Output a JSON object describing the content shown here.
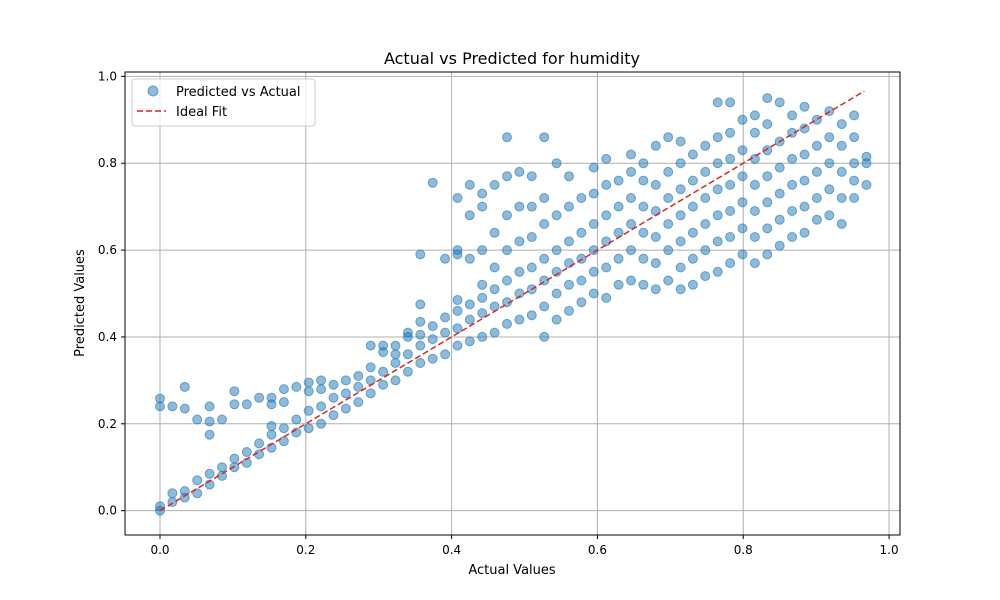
{
  "chart_data": {
    "type": "scatter",
    "title": "Actual vs Predicted for humidity",
    "xlabel": "Actual Values",
    "ylabel": "Predicted Values",
    "xlim": [
      -0.048,
      1.015
    ],
    "ylim": [
      -0.056,
      1.01
    ],
    "xticks": [
      "0.0",
      "0.2",
      "0.4",
      "0.6",
      "0.8",
      "1.0"
    ],
    "yticks": [
      "0.0",
      "0.2",
      "0.4",
      "0.6",
      "0.8",
      "1.0"
    ],
    "grid": true,
    "legend_position": "top-left",
    "legend": {
      "scatter_label": "Predicted vs Actual",
      "line_label": "Ideal Fit"
    },
    "colors": {
      "points": "#1f77b4",
      "ideal": "#d62728",
      "grid": "#b0b0b0"
    },
    "ideal_fit": {
      "x": [
        0.0,
        0.966
      ],
      "y": [
        0.0,
        0.966
      ]
    },
    "series": [
      {
        "name": "Predicted vs Actual",
        "points": [
          [
            0.0,
            0.0
          ],
          [
            0.0,
            0.01
          ],
          [
            0.0,
            0.24
          ],
          [
            0.0,
            0.258
          ],
          [
            0.017,
            0.02
          ],
          [
            0.017,
            0.04
          ],
          [
            0.017,
            0.24
          ],
          [
            0.034,
            0.03
          ],
          [
            0.034,
            0.045
          ],
          [
            0.034,
            0.235
          ],
          [
            0.034,
            0.285
          ],
          [
            0.051,
            0.04
          ],
          [
            0.051,
            0.07
          ],
          [
            0.051,
            0.21
          ],
          [
            0.068,
            0.06
          ],
          [
            0.068,
            0.085
          ],
          [
            0.068,
            0.175
          ],
          [
            0.068,
            0.205
          ],
          [
            0.068,
            0.24
          ],
          [
            0.085,
            0.08
          ],
          [
            0.085,
            0.1
          ],
          [
            0.085,
            0.21
          ],
          [
            0.102,
            0.1
          ],
          [
            0.102,
            0.12
          ],
          [
            0.102,
            0.245
          ],
          [
            0.102,
            0.275
          ],
          [
            0.119,
            0.11
          ],
          [
            0.119,
            0.135
          ],
          [
            0.119,
            0.245
          ],
          [
            0.136,
            0.13
          ],
          [
            0.136,
            0.155
          ],
          [
            0.136,
            0.26
          ],
          [
            0.153,
            0.145
          ],
          [
            0.153,
            0.175
          ],
          [
            0.153,
            0.195
          ],
          [
            0.153,
            0.245
          ],
          [
            0.153,
            0.26
          ],
          [
            0.17,
            0.16
          ],
          [
            0.17,
            0.19
          ],
          [
            0.17,
            0.25
          ],
          [
            0.17,
            0.28
          ],
          [
            0.187,
            0.18
          ],
          [
            0.187,
            0.21
          ],
          [
            0.187,
            0.285
          ],
          [
            0.204,
            0.19
          ],
          [
            0.204,
            0.23
          ],
          [
            0.204,
            0.275
          ],
          [
            0.204,
            0.295
          ],
          [
            0.221,
            0.2
          ],
          [
            0.221,
            0.24
          ],
          [
            0.221,
            0.28
          ],
          [
            0.221,
            0.3
          ],
          [
            0.238,
            0.22
          ],
          [
            0.238,
            0.26
          ],
          [
            0.238,
            0.29
          ],
          [
            0.255,
            0.235
          ],
          [
            0.255,
            0.27
          ],
          [
            0.255,
            0.3
          ],
          [
            0.272,
            0.25
          ],
          [
            0.272,
            0.285
          ],
          [
            0.272,
            0.31
          ],
          [
            0.289,
            0.27
          ],
          [
            0.289,
            0.3
          ],
          [
            0.289,
            0.33
          ],
          [
            0.289,
            0.38
          ],
          [
            0.306,
            0.29
          ],
          [
            0.306,
            0.32
          ],
          [
            0.306,
            0.365
          ],
          [
            0.306,
            0.38
          ],
          [
            0.323,
            0.3
          ],
          [
            0.323,
            0.34
          ],
          [
            0.323,
            0.36
          ],
          [
            0.323,
            0.38
          ],
          [
            0.34,
            0.32
          ],
          [
            0.34,
            0.36
          ],
          [
            0.34,
            0.4
          ],
          [
            0.34,
            0.41
          ],
          [
            0.357,
            0.34
          ],
          [
            0.357,
            0.38
          ],
          [
            0.357,
            0.405
          ],
          [
            0.357,
            0.435
          ],
          [
            0.357,
            0.475
          ],
          [
            0.357,
            0.59
          ],
          [
            0.374,
            0.35
          ],
          [
            0.374,
            0.395
          ],
          [
            0.374,
            0.425
          ],
          [
            0.374,
            0.755
          ],
          [
            0.391,
            0.36
          ],
          [
            0.391,
            0.41
          ],
          [
            0.391,
            0.445
          ],
          [
            0.391,
            0.58
          ],
          [
            0.408,
            0.38
          ],
          [
            0.408,
            0.42
          ],
          [
            0.408,
            0.46
          ],
          [
            0.408,
            0.485
          ],
          [
            0.408,
            0.59
          ],
          [
            0.408,
            0.6
          ],
          [
            0.408,
            0.72
          ],
          [
            0.425,
            0.39
          ],
          [
            0.425,
            0.44
          ],
          [
            0.425,
            0.475
          ],
          [
            0.425,
            0.58
          ],
          [
            0.425,
            0.68
          ],
          [
            0.425,
            0.75
          ],
          [
            0.442,
            0.4
          ],
          [
            0.442,
            0.455
          ],
          [
            0.442,
            0.49
          ],
          [
            0.442,
            0.52
          ],
          [
            0.442,
            0.6
          ],
          [
            0.442,
            0.7
          ],
          [
            0.442,
            0.73
          ],
          [
            0.459,
            0.41
          ],
          [
            0.459,
            0.47
          ],
          [
            0.459,
            0.51
          ],
          [
            0.459,
            0.56
          ],
          [
            0.459,
            0.64
          ],
          [
            0.459,
            0.75
          ],
          [
            0.476,
            0.43
          ],
          [
            0.476,
            0.48
          ],
          [
            0.476,
            0.53
          ],
          [
            0.476,
            0.6
          ],
          [
            0.476,
            0.68
          ],
          [
            0.476,
            0.77
          ],
          [
            0.476,
            0.86
          ],
          [
            0.493,
            0.44
          ],
          [
            0.493,
            0.5
          ],
          [
            0.493,
            0.55
          ],
          [
            0.493,
            0.62
          ],
          [
            0.493,
            0.7
          ],
          [
            0.493,
            0.78
          ],
          [
            0.51,
            0.45
          ],
          [
            0.51,
            0.51
          ],
          [
            0.51,
            0.56
          ],
          [
            0.51,
            0.63
          ],
          [
            0.51,
            0.7
          ],
          [
            0.51,
            0.77
          ],
          [
            0.527,
            0.4
          ],
          [
            0.527,
            0.47
          ],
          [
            0.527,
            0.53
          ],
          [
            0.527,
            0.58
          ],
          [
            0.527,
            0.66
          ],
          [
            0.527,
            0.72
          ],
          [
            0.527,
            0.86
          ],
          [
            0.544,
            0.44
          ],
          [
            0.544,
            0.5
          ],
          [
            0.544,
            0.55
          ],
          [
            0.544,
            0.6
          ],
          [
            0.544,
            0.68
          ],
          [
            0.544,
            0.8
          ],
          [
            0.561,
            0.46
          ],
          [
            0.561,
            0.52
          ],
          [
            0.561,
            0.57
          ],
          [
            0.561,
            0.62
          ],
          [
            0.561,
            0.7
          ],
          [
            0.561,
            0.77
          ],
          [
            0.578,
            0.48
          ],
          [
            0.578,
            0.53
          ],
          [
            0.578,
            0.58
          ],
          [
            0.578,
            0.64
          ],
          [
            0.578,
            0.72
          ],
          [
            0.595,
            0.5
          ],
          [
            0.595,
            0.55
          ],
          [
            0.595,
            0.6
          ],
          [
            0.595,
            0.66
          ],
          [
            0.595,
            0.73
          ],
          [
            0.595,
            0.79
          ],
          [
            0.612,
            0.49
          ],
          [
            0.612,
            0.56
          ],
          [
            0.612,
            0.62
          ],
          [
            0.612,
            0.68
          ],
          [
            0.612,
            0.75
          ],
          [
            0.612,
            0.81
          ],
          [
            0.629,
            0.52
          ],
          [
            0.629,
            0.58
          ],
          [
            0.629,
            0.64
          ],
          [
            0.629,
            0.7
          ],
          [
            0.629,
            0.76
          ],
          [
            0.646,
            0.53
          ],
          [
            0.646,
            0.6
          ],
          [
            0.646,
            0.66
          ],
          [
            0.646,
            0.72
          ],
          [
            0.646,
            0.78
          ],
          [
            0.646,
            0.82
          ],
          [
            0.663,
            0.52
          ],
          [
            0.663,
            0.58
          ],
          [
            0.663,
            0.64
          ],
          [
            0.663,
            0.7
          ],
          [
            0.663,
            0.76
          ],
          [
            0.663,
            0.8
          ],
          [
            0.68,
            0.51
          ],
          [
            0.68,
            0.57
          ],
          [
            0.68,
            0.63
          ],
          [
            0.68,
            0.69
          ],
          [
            0.68,
            0.75
          ],
          [
            0.68,
            0.84
          ],
          [
            0.697,
            0.53
          ],
          [
            0.697,
            0.6
          ],
          [
            0.697,
            0.66
          ],
          [
            0.697,
            0.72
          ],
          [
            0.697,
            0.78
          ],
          [
            0.697,
            0.86
          ],
          [
            0.714,
            0.51
          ],
          [
            0.714,
            0.56
          ],
          [
            0.714,
            0.62
          ],
          [
            0.714,
            0.68
          ],
          [
            0.714,
            0.74
          ],
          [
            0.714,
            0.8
          ],
          [
            0.714,
            0.85
          ],
          [
            0.731,
            0.52
          ],
          [
            0.731,
            0.58
          ],
          [
            0.731,
            0.64
          ],
          [
            0.731,
            0.7
          ],
          [
            0.731,
            0.76
          ],
          [
            0.731,
            0.82
          ],
          [
            0.748,
            0.54
          ],
          [
            0.748,
            0.6
          ],
          [
            0.748,
            0.66
          ],
          [
            0.748,
            0.72
          ],
          [
            0.748,
            0.78
          ],
          [
            0.748,
            0.84
          ],
          [
            0.765,
            0.55
          ],
          [
            0.765,
            0.62
          ],
          [
            0.765,
            0.68
          ],
          [
            0.765,
            0.74
          ],
          [
            0.765,
            0.8
          ],
          [
            0.765,
            0.86
          ],
          [
            0.765,
            0.94
          ],
          [
            0.782,
            0.57
          ],
          [
            0.782,
            0.63
          ],
          [
            0.782,
            0.69
          ],
          [
            0.782,
            0.75
          ],
          [
            0.782,
            0.81
          ],
          [
            0.782,
            0.87
          ],
          [
            0.782,
            0.94
          ],
          [
            0.799,
            0.59
          ],
          [
            0.799,
            0.65
          ],
          [
            0.799,
            0.71
          ],
          [
            0.799,
            0.77
          ],
          [
            0.799,
            0.83
          ],
          [
            0.799,
            0.9
          ],
          [
            0.816,
            0.57
          ],
          [
            0.816,
            0.63
          ],
          [
            0.816,
            0.69
          ],
          [
            0.816,
            0.75
          ],
          [
            0.816,
            0.81
          ],
          [
            0.816,
            0.87
          ],
          [
            0.816,
            0.91
          ],
          [
            0.833,
            0.59
          ],
          [
            0.833,
            0.65
          ],
          [
            0.833,
            0.71
          ],
          [
            0.833,
            0.77
          ],
          [
            0.833,
            0.83
          ],
          [
            0.833,
            0.89
          ],
          [
            0.833,
            0.95
          ],
          [
            0.85,
            0.61
          ],
          [
            0.85,
            0.67
          ],
          [
            0.85,
            0.73
          ],
          [
            0.85,
            0.79
          ],
          [
            0.85,
            0.85
          ],
          [
            0.85,
            0.94
          ],
          [
            0.867,
            0.63
          ],
          [
            0.867,
            0.69
          ],
          [
            0.867,
            0.75
          ],
          [
            0.867,
            0.81
          ],
          [
            0.867,
            0.87
          ],
          [
            0.867,
            0.91
          ],
          [
            0.884,
            0.64
          ],
          [
            0.884,
            0.7
          ],
          [
            0.884,
            0.76
          ],
          [
            0.884,
            0.82
          ],
          [
            0.884,
            0.88
          ],
          [
            0.884,
            0.93
          ],
          [
            0.901,
            0.67
          ],
          [
            0.901,
            0.72
          ],
          [
            0.901,
            0.78
          ],
          [
            0.901,
            0.84
          ],
          [
            0.901,
            0.9
          ],
          [
            0.918,
            0.68
          ],
          [
            0.918,
            0.74
          ],
          [
            0.918,
            0.8
          ],
          [
            0.918,
            0.86
          ],
          [
            0.918,
            0.92
          ],
          [
            0.935,
            0.66
          ],
          [
            0.935,
            0.72
          ],
          [
            0.935,
            0.78
          ],
          [
            0.935,
            0.84
          ],
          [
            0.935,
            0.89
          ],
          [
            0.952,
            0.72
          ],
          [
            0.952,
            0.76
          ],
          [
            0.952,
            0.8
          ],
          [
            0.952,
            0.86
          ],
          [
            0.952,
            0.91
          ],
          [
            0.969,
            0.75
          ],
          [
            0.969,
            0.8
          ],
          [
            0.969,
            0.815
          ]
        ]
      }
    ]
  }
}
